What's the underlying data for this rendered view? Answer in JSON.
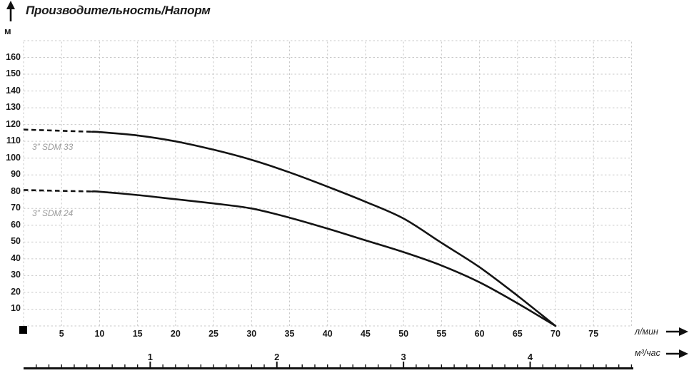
{
  "title": "Производительность/Напорм",
  "y_axis": {
    "unit": "м"
  },
  "x_axis_primary": {
    "unit": "л/мин"
  },
  "x_axis_secondary": {
    "unit": "м³/час"
  },
  "colors": {
    "curve": "#141414",
    "grid": "#c9c9c9",
    "text": "#1a1a1a",
    "series_label": "#9b9b9b",
    "ruler": "#111111"
  },
  "chart_data": {
    "type": "line",
    "title": "Производительность/Напорм",
    "ylabel": "м",
    "xlabel": "л/мин",
    "xlabel_secondary": "м³/час",
    "xlim": [
      0,
      80
    ],
    "ylim": [
      0,
      170
    ],
    "grid": true,
    "grid_step_x": 5,
    "grid_step_y": 10,
    "x_ticks": [
      5,
      10,
      15,
      20,
      25,
      30,
      35,
      40,
      45,
      50,
      55,
      60,
      65,
      70,
      75
    ],
    "y_ticks": [
      10,
      20,
      30,
      40,
      50,
      60,
      70,
      80,
      90,
      100,
      110,
      120,
      130,
      140,
      150,
      160
    ],
    "x2_ticks": [
      1,
      2,
      3,
      4
    ],
    "x2_to_x_factor": 16.6667,
    "x": [
      0,
      5,
      10,
      15,
      20,
      25,
      30,
      35,
      40,
      45,
      50,
      55,
      60,
      65,
      70
    ],
    "series": [
      {
        "name": "3” SDM 33",
        "values": [
          117,
          116.5,
          115.5,
          113.5,
          110,
          105,
          99,
          91.5,
          83,
          74,
          64,
          49.5,
          35,
          18,
          0
        ],
        "dashed_until_x": 9
      },
      {
        "name": "3” SDM 24",
        "values": [
          81,
          80.5,
          80,
          78,
          75.5,
          73,
          70,
          64.5,
          58,
          51,
          44,
          36,
          26,
          13.5,
          0
        ],
        "dashed_until_x": 9
      }
    ]
  }
}
